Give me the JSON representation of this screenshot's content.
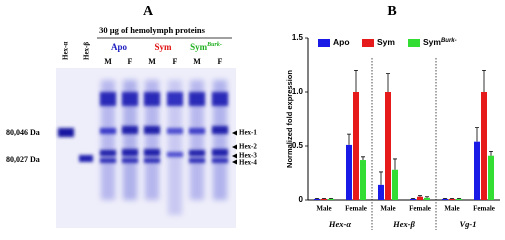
{
  "gel": {
    "panel_label": "A",
    "title": "30 µg of hemolymph proteins",
    "groups": [
      "Apo",
      "Sym",
      "Sym"
    ],
    "group_superscript": "Burk-",
    "lanes": [
      "M",
      "F",
      "M",
      "F",
      "M",
      "F"
    ],
    "standards": [
      "Hex-α",
      "Hex-β"
    ],
    "markers": [
      "80,046 Da",
      "80,027 Da"
    ],
    "bands": [
      "Hex-1",
      "Hex-2",
      "Hex-3",
      "Hex-4"
    ]
  },
  "chart_data": {
    "type": "bar",
    "panel_label": "B",
    "ylabel": "Normalized fold expression",
    "categories": [
      "Male",
      "Female",
      "Male",
      "Female",
      "Male",
      "Female"
    ],
    "groups": [
      "Hex-α",
      "Hex-β",
      "Vg-1"
    ],
    "ylim": [
      0,
      1.5
    ],
    "yticks": [
      0,
      0.5,
      {
        "value": 1,
        "label": "1.0"
      },
      {
        "value": 1.5,
        "label": "1.5"
      }
    ],
    "legend": "top",
    "series": [
      {
        "name": "Apo",
        "color": "#1a1ae6",
        "values": [
          0.01,
          0.51,
          0.14,
          0.01,
          0.01,
          0.54
        ],
        "errors": [
          0.005,
          0.1,
          0.12,
          0.005,
          0.005,
          0.13
        ]
      },
      {
        "name": "Sym",
        "color": "#e61a1a",
        "values": [
          0.01,
          1,
          1,
          0.03,
          0.01,
          1
        ],
        "errors": [
          0.005,
          0.2,
          0.17,
          0.01,
          0.005,
          0.2
        ]
      },
      {
        "name": "Sym",
        "superscript": "Burk-",
        "color": "#33dd33",
        "values": [
          0.01,
          0.37,
          0.28,
          0.02,
          0.01,
          0.41
        ],
        "errors": [
          0.005,
          0.03,
          0.1,
          0.01,
          0.005,
          0.04
        ]
      }
    ]
  }
}
